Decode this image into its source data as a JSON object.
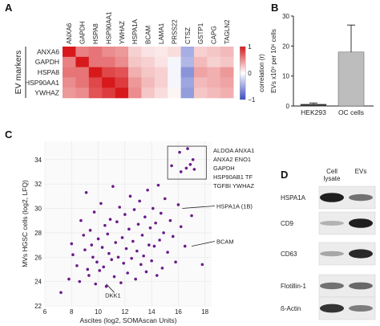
{
  "panels": {
    "A": {
      "label": "A",
      "row_group_label": "EV markers",
      "chart_data": {
        "type": "heatmap",
        "rows": [
          "ANXA6",
          "GAPDH",
          "HSPA8",
          "HSP90AA1",
          "YWHAZ"
        ],
        "columns": [
          "ANXA6",
          "GAPDH",
          "HSPA8",
          "HSP90AA1",
          "YWHAZ",
          "HSPA1A",
          "BCAM",
          "LAMA1",
          "PRSS22",
          "CTSZ",
          "GSTP1",
          "CAPG",
          "TAGLN2"
        ],
        "values": [
          [
            1.0,
            0.55,
            0.6,
            0.5,
            0.45,
            0.2,
            0.12,
            0.1,
            0.15,
            -0.45,
            0.2,
            0.25,
            0.3
          ],
          [
            0.55,
            1.0,
            0.6,
            0.6,
            0.5,
            0.25,
            0.2,
            0.12,
            -0.05,
            -0.4,
            0.3,
            0.2,
            0.25
          ],
          [
            0.6,
            0.6,
            1.0,
            0.8,
            0.75,
            0.35,
            0.25,
            0.2,
            -0.05,
            -0.6,
            0.4,
            0.35,
            0.45
          ],
          [
            0.5,
            0.6,
            0.8,
            1.0,
            0.85,
            0.45,
            0.3,
            0.2,
            -0.05,
            -0.5,
            0.3,
            0.35,
            0.4
          ],
          [
            0.45,
            0.5,
            0.75,
            0.85,
            1.0,
            0.5,
            0.25,
            0.15,
            0.05,
            -0.55,
            0.25,
            0.3,
            0.35
          ]
        ],
        "colorbar": {
          "label": "correlation (r)",
          "ticks": [
            "1",
            "0",
            "−1"
          ],
          "range": [
            -1,
            1
          ]
        },
        "colors": {
          "positive": "#d7191c",
          "zero": "#ffffff",
          "negative": "#3b4cc0"
        }
      }
    },
    "B": {
      "label": "B",
      "chart_data": {
        "type": "bar",
        "categories": [
          "HEK293",
          "OC cells"
        ],
        "values": [
          0.6,
          18
        ],
        "errors": [
          0.4,
          9
        ],
        "ylabel": "EVs x10⁹ per 10⁶ cells",
        "ylim": [
          0,
          30
        ],
        "yticks": [
          "0",
          "10",
          "20",
          "30"
        ],
        "colors": {
          "HEK293": "#333333",
          "OC cells": "#bdbdbd"
        }
      }
    },
    "C": {
      "label": "C",
      "chart_data": {
        "type": "scatter",
        "xlabel": "Ascites (log2, SOMAscan Units)",
        "ylabel": "MVs HGSC cells (log2, LFQ)",
        "xlim": [
          6,
          18.5
        ],
        "ylim": [
          22,
          35.5
        ],
        "xticks": [
          "6",
          "8",
          "10",
          "12",
          "14",
          "16",
          "18"
        ],
        "yticks": [
          "22",
          "24",
          "26",
          "28",
          "30",
          "32",
          "34"
        ],
        "color": "#6a1b8a",
        "points": [
          [
            16.1,
            34.6
          ],
          [
            16.6,
            33.3
          ],
          [
            16.9,
            33.6
          ],
          [
            17.1,
            34.0
          ],
          [
            15.5,
            33.5
          ],
          [
            16.2,
            33.0
          ],
          [
            16.7,
            34.9
          ],
          [
            17.2,
            33.2
          ],
          [
            7.2,
            23.1
          ],
          [
            7.8,
            24.2
          ],
          [
            8.0,
            27.1
          ],
          [
            8.1,
            26.2
          ],
          [
            8.4,
            25.3
          ],
          [
            8.6,
            24.0
          ],
          [
            8.7,
            29.0
          ],
          [
            8.9,
            27.8
          ],
          [
            9.0,
            26.6
          ],
          [
            9.1,
            31.3
          ],
          [
            9.2,
            25.0
          ],
          [
            9.3,
            24.5
          ],
          [
            9.4,
            28.2
          ],
          [
            9.5,
            27.0
          ],
          [
            9.6,
            26.0
          ],
          [
            9.7,
            29.7
          ],
          [
            9.8,
            23.8
          ],
          [
            9.9,
            25.6
          ],
          [
            10.0,
            27.5
          ],
          [
            10.1,
            24.9
          ],
          [
            10.2,
            30.4
          ],
          [
            10.3,
            26.8
          ],
          [
            10.4,
            25.2
          ],
          [
            10.5,
            28.6
          ],
          [
            10.6,
            23.6
          ],
          [
            10.7,
            27.9
          ],
          [
            10.8,
            26.3
          ],
          [
            10.9,
            29.1
          ],
          [
            11.0,
            25.8
          ],
          [
            11.1,
            31.8
          ],
          [
            11.2,
            24.4
          ],
          [
            11.3,
            27.2
          ],
          [
            11.4,
            28.9
          ],
          [
            11.5,
            26.0
          ],
          [
            11.6,
            30.1
          ],
          [
            11.7,
            23.9
          ],
          [
            11.8,
            27.6
          ],
          [
            11.9,
            25.5
          ],
          [
            12.0,
            29.5
          ],
          [
            12.1,
            26.7
          ],
          [
            12.2,
            24.7
          ],
          [
            12.3,
            28.3
          ],
          [
            12.4,
            31.0
          ],
          [
            12.5,
            25.9
          ],
          [
            12.6,
            27.3
          ],
          [
            12.7,
            29.9
          ],
          [
            12.8,
            24.2
          ],
          [
            12.9,
            26.5
          ],
          [
            13.0,
            28.7
          ],
          [
            13.1,
            30.6
          ],
          [
            13.2,
            25.4
          ],
          [
            13.3,
            27.8
          ],
          [
            13.4,
            26.1
          ],
          [
            13.5,
            29.3
          ],
          [
            13.6,
            24.8
          ],
          [
            13.7,
            31.5
          ],
          [
            13.8,
            27.0
          ],
          [
            13.9,
            28.4
          ],
          [
            14.0,
            25.7
          ],
          [
            14.1,
            30.0
          ],
          [
            14.2,
            26.9
          ],
          [
            14.3,
            28.8
          ],
          [
            14.4,
            24.5
          ],
          [
            14.5,
            31.9
          ],
          [
            14.6,
            27.4
          ],
          [
            14.7,
            29.6
          ],
          [
            14.8,
            25.1
          ],
          [
            14.9,
            28.0
          ],
          [
            15.0,
            30.8
          ],
          [
            15.2,
            26.4
          ],
          [
            15.4,
            29.0
          ],
          [
            15.6,
            27.7
          ],
          [
            15.8,
            25.6
          ],
          [
            16.0,
            30.3
          ],
          [
            16.2,
            28.5
          ],
          [
            16.5,
            26.9
          ],
          [
            17.0,
            29.4
          ],
          [
            17.8,
            25.4
          ]
        ],
        "callout_box": [
          "ALDOA ANXA1",
          "ANXA2 ENO1",
          "GAPDH",
          "HSP90AB1 TF",
          "TGFBI YWHAZ"
        ],
        "annotations": [
          {
            "text": "HSPA1A (1B)",
            "x": 17.0,
            "y": 30.2
          },
          {
            "text": "BCAM",
            "x": 17.6,
            "y": 27.3
          },
          {
            "text": "DKK1",
            "x": 11.0,
            "y": 23.5
          }
        ]
      }
    },
    "D": {
      "label": "D",
      "columns": [
        "Cell\nlysate",
        "EVs"
      ],
      "blots": [
        {
          "name": "HSPA1A",
          "lysate": 0.95,
          "evs": 0.55
        },
        {
          "name": "CD9",
          "lysate": 0.25,
          "evs": 0.95
        },
        {
          "name": "CD63",
          "lysate": 0.3,
          "evs": 0.9
        },
        {
          "name": "Flotillin-1",
          "lysate": 0.55,
          "evs": 0.6
        },
        {
          "name": "ß-Actin",
          "lysate": 0.85,
          "evs": 0.5
        }
      ]
    }
  }
}
